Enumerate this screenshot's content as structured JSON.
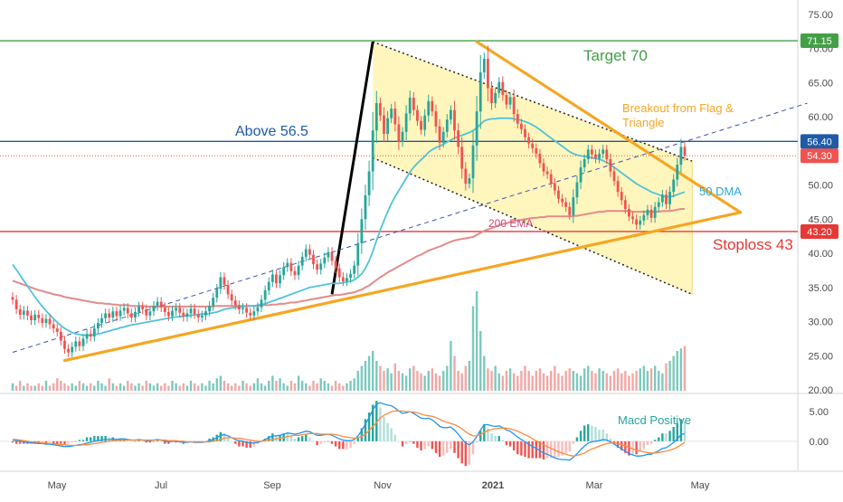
{
  "chart_data": {
    "type": "candlestick",
    "title": "",
    "price_axis": {
      "min": 20,
      "max": 75,
      "ticks": [
        "75.00",
        "70.00",
        "65.00",
        "60.00",
        "55.00",
        "50.00",
        "45.00",
        "40.00",
        "35.00",
        "30.00",
        "25.00",
        "20.00"
      ]
    },
    "time_axis": {
      "labels": [
        {
          "text": "May",
          "month": 0
        },
        {
          "text": "Jul",
          "month": 2
        },
        {
          "text": "Sep",
          "month": 4
        },
        {
          "text": "Nov",
          "month": 6
        },
        {
          "text": "2021",
          "month": 8
        },
        {
          "text": "Mar",
          "month": 10
        },
        {
          "text": "May",
          "month": 12
        }
      ]
    },
    "price_tags": [
      {
        "value": 71.15,
        "label": "71.15",
        "color": "#43a047"
      },
      {
        "value": 56.4,
        "label": "56.40",
        "color": "#1e5aa8"
      },
      {
        "value": 54.3,
        "label": "54.30",
        "color": "#ef5350"
      },
      {
        "value": 43.2,
        "label": "43.20",
        "color": "#e53935"
      }
    ],
    "horizontal_lines": [
      {
        "name": "target",
        "value": 71.15,
        "color": "#43a047"
      },
      {
        "name": "above",
        "value": 56.4,
        "color": "#1e5aa8"
      },
      {
        "name": "stoploss",
        "value": 43.2,
        "color": "#e53935"
      },
      {
        "name": "last-price",
        "value": 54.3,
        "color": "#ef5350",
        "dotted": true
      }
    ],
    "annotations": [
      {
        "text": "Target 70",
        "color": "#43a047"
      },
      {
        "text": "Above 56.5",
        "color": "#1e5aa8"
      },
      {
        "text": "Breakout from Flag &",
        "color": "#f5a623"
      },
      {
        "text": "Triangle",
        "color": "#f5a623"
      },
      {
        "text": "50 DMA",
        "color": "#29a8e0"
      },
      {
        "text": "200 EMA",
        "color": "#d04a7a"
      },
      {
        "text": "Stoploss 43",
        "color": "#e53935"
      },
      {
        "text": "Macd Positive",
        "color": "#26a69a"
      }
    ],
    "ohlc_close": [
      33.2,
      31.8,
      31.0,
      31.6,
      30.9,
      30.2,
      31.0,
      30.5,
      29.8,
      30.4,
      29.6,
      29.0,
      28.5,
      27.2,
      26.0,
      25.5,
      26.3,
      27.1,
      26.4,
      27.5,
      28.2,
      27.8,
      29.0,
      29.8,
      30.5,
      31.2,
      30.6,
      31.5,
      30.8,
      31.6,
      32.0,
      31.2,
      30.6,
      31.4,
      32.2,
      31.8,
      30.9,
      31.5,
      32.3,
      32.9,
      32.1,
      31.4,
      30.8,
      31.6,
      32.0,
      31.3,
      30.7,
      31.2,
      31.9,
      31.1,
      30.6,
      30.9,
      31.5,
      32.3,
      33.5,
      34.8,
      36.5,
      35.4,
      34.0,
      33.1,
      32.4,
      31.8,
      32.0,
      31.3,
      30.9,
      31.5,
      32.1,
      33.2,
      34.6,
      35.8,
      36.9,
      35.6,
      36.8,
      38.0,
      38.6,
      37.4,
      36.8,
      38.2,
      39.5,
      40.6,
      39.8,
      38.4,
      37.6,
      38.5,
      39.4,
      40.2,
      38.9,
      37.8,
      36.5,
      35.9,
      36.4,
      37.0,
      38.2,
      41.5,
      45.0,
      48.5,
      52.0,
      58.0,
      62.0,
      60.2,
      57.5,
      59.8,
      61.2,
      58.9,
      56.3,
      57.8,
      60.5,
      62.8,
      61.0,
      59.4,
      58.1,
      60.2,
      62.3,
      60.8,
      58.6,
      56.2,
      57.8,
      59.6,
      61.0,
      58.0,
      55.6,
      52.4,
      50.2,
      51.0,
      55.8,
      60.8,
      66.5,
      68.5,
      64.2,
      62.0,
      63.5,
      65.1,
      63.2,
      61.8,
      62.9,
      60.4,
      59.0,
      58.2,
      57.0,
      56.1,
      55.4,
      54.6,
      53.2,
      52.0,
      51.6,
      50.3,
      49.2,
      48.0,
      47.5,
      46.8,
      45.6,
      48.2,
      50.4,
      52.6,
      53.8,
      55.2,
      54.5,
      53.9,
      54.6,
      55.2,
      53.8,
      52.0,
      50.6,
      49.0,
      47.8,
      46.5,
      45.4,
      45.0,
      44.2,
      44.8,
      45.6,
      46.4,
      45.2,
      46.8,
      47.5,
      48.6,
      47.2,
      49.0,
      50.8,
      53.0,
      55.6,
      54.3
    ],
    "volume": [
      3,
      2,
      4,
      2,
      3,
      2,
      2,
      3,
      2,
      4,
      2,
      3,
      5,
      4,
      3,
      2,
      3,
      2,
      4,
      3,
      2,
      3,
      2,
      4,
      3,
      2,
      5,
      3,
      2,
      3,
      2,
      4,
      3,
      2,
      3,
      2,
      4,
      3,
      2,
      3,
      2,
      3,
      2,
      4,
      3,
      2,
      3,
      2,
      4,
      3,
      2,
      3,
      2,
      4,
      3,
      5,
      6,
      4,
      3,
      2,
      3,
      2,
      4,
      3,
      2,
      3,
      5,
      3,
      2,
      4,
      6,
      4,
      5,
      3,
      2,
      4,
      3,
      6,
      4,
      3,
      2,
      4,
      3,
      5,
      4,
      3,
      2,
      4,
      3,
      2,
      3,
      4,
      5,
      8,
      10,
      12,
      14,
      16,
      12,
      10,
      8,
      9,
      7,
      11,
      8,
      7,
      6,
      9,
      10,
      8,
      7,
      6,
      8,
      9,
      7,
      6,
      8,
      10,
      20,
      14,
      8,
      7,
      10,
      12,
      34,
      40,
      24,
      14,
      9,
      8,
      10,
      7,
      6,
      8,
      9,
      7,
      6,
      8,
      10,
      8,
      6,
      8,
      9,
      7,
      6,
      8,
      10,
      7,
      6,
      8,
      9,
      8,
      7,
      6,
      9,
      10,
      8,
      7,
      9,
      8,
      7,
      6,
      8,
      9,
      7,
      8,
      6,
      7,
      8,
      9,
      10,
      8,
      9,
      10,
      8,
      7,
      11,
      12,
      14,
      16,
      17,
      18
    ],
    "ma50_close": [
      38.4,
      37.6,
      36.8,
      36.0,
      35.2,
      34.4,
      33.6,
      32.9,
      32.2,
      31.6,
      31.0,
      30.4,
      29.9,
      29.4,
      29.0,
      28.7,
      28.4,
      28.2,
      28.1,
      28.0,
      28.0,
      28.0,
      28.1,
      28.2,
      28.3,
      28.5,
      28.6,
      28.8,
      28.9,
      29.1,
      29.2,
      29.4,
      29.5,
      29.6,
      29.7,
      29.8,
      29.9,
      30.0,
      30.1,
      30.2,
      30.3,
      30.4,
      30.5,
      30.6,
      30.7,
      30.7,
      30.8,
      30.9,
      30.9,
      31.0,
      31.0,
      31.1,
      31.1,
      31.2,
      31.3,
      31.4,
      31.6,
      31.8,
      31.9,
      32.0,
      32.1,
      32.1,
      32.2,
      32.2,
      32.3,
      32.3,
      32.4,
      32.5,
      32.6,
      32.8,
      33.0,
      33.2,
      33.4,
      33.6,
      33.8,
      34.0,
      34.2,
      34.4,
      34.6,
      34.8,
      35.0,
      35.1,
      35.2,
      35.3,
      35.4,
      35.5,
      35.6,
      35.6,
      35.6,
      35.7,
      35.8,
      35.9,
      36.1,
      36.5,
      37.0,
      37.8,
      38.9,
      40.3,
      41.9,
      43.4,
      44.8,
      46.1,
      47.3,
      48.3,
      49.2,
      50.1,
      51.0,
      51.9,
      52.6,
      53.2,
      53.7,
      54.2,
      54.8,
      55.2,
      55.5,
      55.7,
      56.0,
      56.3,
      56.6,
      56.9,
      57.1,
      57.3,
      57.5,
      57.7,
      58.0,
      58.4,
      58.9,
      59.4,
      59.6,
      59.7,
      59.7,
      59.8,
      59.8,
      59.8,
      59.8,
      59.7,
      59.6,
      59.5,
      59.3,
      59.1,
      58.8,
      58.5,
      58.1,
      57.7,
      57.3,
      56.9,
      56.5,
      56.1,
      55.7,
      55.3,
      54.9,
      54.6,
      54.4,
      54.3,
      54.2,
      54.1,
      54.0,
      53.9,
      53.8,
      53.6,
      53.3,
      53.0,
      52.6,
      52.2,
      51.8,
      51.4,
      51.0,
      50.6,
      50.2,
      49.9,
      49.6,
      49.3,
      49.0,
      48.8,
      48.6,
      48.4,
      48.3,
      48.3,
      48.4,
      48.6,
      48.8,
      49.0
    ],
    "ema200_close": [
      36.0,
      35.8,
      35.6,
      35.4,
      35.2,
      35.0,
      34.8,
      34.6,
      34.5,
      34.3,
      34.2,
      34.0,
      33.9,
      33.8,
      33.6,
      33.5,
      33.4,
      33.3,
      33.2,
      33.1,
      33.0,
      32.9,
      32.8,
      32.7,
      32.7,
      32.6,
      32.6,
      32.5,
      32.5,
      32.4,
      32.4,
      32.4,
      32.3,
      32.3,
      32.3,
      32.3,
      32.2,
      32.2,
      32.2,
      32.2,
      32.2,
      32.2,
      32.2,
      32.2,
      32.2,
      32.2,
      32.2,
      32.2,
      32.2,
      32.2,
      32.2,
      32.2,
      32.2,
      32.2,
      32.2,
      32.3,
      32.3,
      32.3,
      32.3,
      32.3,
      32.3,
      32.3,
      32.3,
      32.3,
      32.3,
      32.3,
      32.3,
      32.4,
      32.4,
      32.4,
      32.5,
      32.5,
      32.6,
      32.6,
      32.7,
      32.8,
      32.8,
      32.9,
      33.0,
      33.1,
      33.2,
      33.3,
      33.4,
      33.5,
      33.6,
      33.7,
      33.8,
      33.9,
      33.9,
      34.0,
      34.1,
      34.2,
      34.3,
      34.5,
      34.7,
      35.0,
      35.3,
      35.7,
      36.1,
      36.5,
      36.8,
      37.2,
      37.5,
      37.8,
      38.1,
      38.4,
      38.7,
      39.0,
      39.3,
      39.6,
      39.8,
      40.1,
      40.4,
      40.6,
      40.8,
      41.0,
      41.2,
      41.5,
      41.7,
      41.9,
      42.0,
      42.1,
      42.2,
      42.3,
      42.4,
      42.7,
      43.0,
      43.3,
      43.5,
      43.7,
      43.9,
      44.1,
      44.3,
      44.4,
      44.6,
      44.7,
      44.8,
      44.9,
      45.0,
      45.1,
      45.2,
      45.2,
      45.3,
      45.3,
      45.4,
      45.4,
      45.4,
      45.4,
      45.4,
      45.4,
      45.4,
      45.5,
      45.5,
      45.6,
      45.7,
      45.8,
      45.9,
      46.0,
      46.1,
      46.1,
      46.2,
      46.2,
      46.2,
      46.2,
      46.2,
      46.2,
      46.2,
      46.1,
      46.1,
      46.1,
      46.1,
      46.1,
      46.1,
      46.1,
      46.1,
      46.2,
      46.2,
      46.2,
      46.3,
      46.4,
      46.5,
      46.5
    ],
    "macd_axis": {
      "ticks": [
        "5.00",
        "0.00"
      ],
      "min": -4,
      "max": 7
    },
    "macd_line": [
      0.2,
      0.1,
      0.0,
      -0.1,
      -0.2,
      -0.3,
      -0.3,
      -0.4,
      -0.4,
      -0.5,
      -0.5,
      -0.6,
      -0.7,
      -0.8,
      -0.9,
      -0.9,
      -0.8,
      -0.7,
      -0.6,
      -0.5,
      -0.3,
      -0.2,
      0.0,
      0.1,
      0.2,
      0.3,
      0.3,
      0.4,
      0.3,
      0.4,
      0.4,
      0.3,
      0.2,
      0.2,
      0.3,
      0.2,
      0.1,
      0.1,
      0.2,
      0.3,
      0.2,
      0.0,
      -0.1,
      0.0,
      0.0,
      -0.1,
      -0.2,
      -0.2,
      -0.1,
      -0.2,
      -0.2,
      -0.2,
      -0.1,
      0.1,
      0.3,
      0.6,
      1.0,
      1.1,
      0.9,
      0.6,
      0.3,
      0.1,
      0.0,
      -0.2,
      -0.3,
      -0.3,
      -0.2,
      0.0,
      0.3,
      0.6,
      0.9,
      0.9,
      1.0,
      1.2,
      1.4,
      1.3,
      1.2,
      1.3,
      1.5,
      1.7,
      1.6,
      1.3,
      1.0,
      1.0,
      1.1,
      1.2,
      1.0,
      0.7,
      0.4,
      0.2,
      0.1,
      0.1,
      0.3,
      0.9,
      1.8,
      2.9,
      4.0,
      5.3,
      6.3,
      6.5,
      6.3,
      6.1,
      6.0,
      5.6,
      5.1,
      4.7,
      4.8,
      5.0,
      4.7,
      4.3,
      3.9,
      3.8,
      3.9,
      3.6,
      3.1,
      2.5,
      2.3,
      2.3,
      2.4,
      1.9,
      1.2,
      0.4,
      -0.3,
      -0.6,
      -0.1,
      0.8,
      1.9,
      2.8,
      2.8,
      2.6,
      2.5,
      2.6,
      2.3,
      1.9,
      1.7,
      1.2,
      0.7,
      0.3,
      -0.1,
      -0.5,
      -0.9,
      -1.2,
      -1.6,
      -2.0,
      -2.2,
      -2.5,
      -2.8,
      -3.0,
      -3.1,
      -3.1,
      -3.2,
      -2.7,
      -2.1,
      -1.4,
      -0.8,
      -0.3,
      -0.1,
      0.0,
      0.1,
      0.3,
      0.2,
      -0.1,
      -0.5,
      -0.9,
      -1.3,
      -1.7,
      -2.1,
      -2.3,
      -2.5,
      -2.5,
      -2.4,
      -2.2,
      -2.2,
      -1.9,
      -1.6,
      -1.2,
      -1.1,
      -0.7,
      -0.2,
      0.4,
      1.1,
      1.3
    ],
    "signal_line": [
      0.3,
      0.3,
      0.2,
      0.1,
      0.0,
      -0.1,
      -0.1,
      -0.2,
      -0.3,
      -0.3,
      -0.4,
      -0.4,
      -0.5,
      -0.6,
      -0.6,
      -0.7,
      -0.7,
      -0.7,
      -0.7,
      -0.6,
      -0.6,
      -0.5,
      -0.4,
      -0.3,
      -0.2,
      -0.1,
      0.0,
      0.1,
      0.1,
      0.2,
      0.2,
      0.2,
      0.2,
      0.2,
      0.2,
      0.2,
      0.2,
      0.2,
      0.2,
      0.2,
      0.2,
      0.2,
      0.1,
      0.1,
      0.1,
      0.0,
      0.0,
      -0.1,
      -0.1,
      -0.1,
      -0.1,
      -0.1,
      -0.1,
      -0.1,
      0.0,
      0.1,
      0.3,
      0.5,
      0.6,
      0.6,
      0.5,
      0.5,
      0.4,
      0.3,
      0.2,
      0.1,
      0.0,
      0.0,
      0.1,
      0.2,
      0.3,
      0.4,
      0.5,
      0.6,
      0.8,
      0.9,
      1.0,
      1.0,
      1.1,
      1.2,
      1.3,
      1.3,
      1.3,
      1.2,
      1.2,
      1.2,
      1.2,
      1.1,
      1.0,
      0.8,
      0.7,
      0.6,
      0.5,
      0.6,
      0.8,
      1.2,
      1.8,
      2.5,
      3.2,
      3.9,
      4.4,
      4.7,
      5.0,
      5.1,
      5.1,
      5.1,
      5.0,
      5.0,
      4.9,
      4.8,
      4.6,
      4.4,
      4.3,
      4.2,
      4.0,
      3.7,
      3.4,
      3.2,
      3.0,
      2.8,
      2.5,
      2.1,
      1.6,
      1.2,
      0.9,
      0.9,
      1.1,
      1.5,
      1.8,
      2.0,
      2.1,
      2.2,
      2.2,
      2.2,
      2.1,
      1.9,
      1.7,
      1.4,
      1.1,
      0.8,
      0.4,
      0.1,
      -0.3,
      -0.6,
      -0.9,
      -1.2,
      -1.5,
      -1.8,
      -2.0,
      -2.2,
      -2.4,
      -2.5,
      -2.4,
      -2.2,
      -2.0,
      -1.6,
      -1.3,
      -1.1,
      -0.8,
      -0.6,
      -0.4,
      -0.3,
      -0.3,
      -0.4,
      -0.6,
      -0.8,
      -1.0,
      -1.3,
      -1.5,
      -1.7,
      -1.8,
      -1.9,
      -2.0,
      -2.0,
      -1.9,
      -1.8,
      -1.7,
      -1.5,
      -1.3,
      -1.0,
      -0.6,
      -0.2
    ],
    "trendlines": [
      {
        "name": "lower-support",
        "color": "#f5a623",
        "from": {
          "bar": 14,
          "price": 24.3
        },
        "to": {
          "bar": 196,
          "price": 46.0
        }
      },
      {
        "name": "flag-top",
        "color": "#f5a623",
        "from": {
          "bar": 125,
          "price": 71.0
        },
        "to": {
          "bar": 196,
          "price": 46.0
        }
      },
      {
        "name": "impulse",
        "color": "#000000",
        "from": {
          "bar": 86,
          "price": 34.0
        },
        "to": {
          "bar": 97,
          "price": 71.0
        }
      },
      {
        "name": "channel-dashed",
        "color": "#3f51b5",
        "from": {
          "bar": 0,
          "price": 25.5
        },
        "to": {
          "bar": 214,
          "price": 62.0
        }
      }
    ],
    "flag_channel": {
      "upper": [
        {
          "bar": 97,
          "price": 71.0
        },
        {
          "bar": 183,
          "price": 53.5
        }
      ],
      "lower": [
        {
          "bar": 97,
          "price": 54.0
        },
        {
          "bar": 183,
          "price": 34.0
        }
      ],
      "fill": "#fff5b3"
    }
  }
}
